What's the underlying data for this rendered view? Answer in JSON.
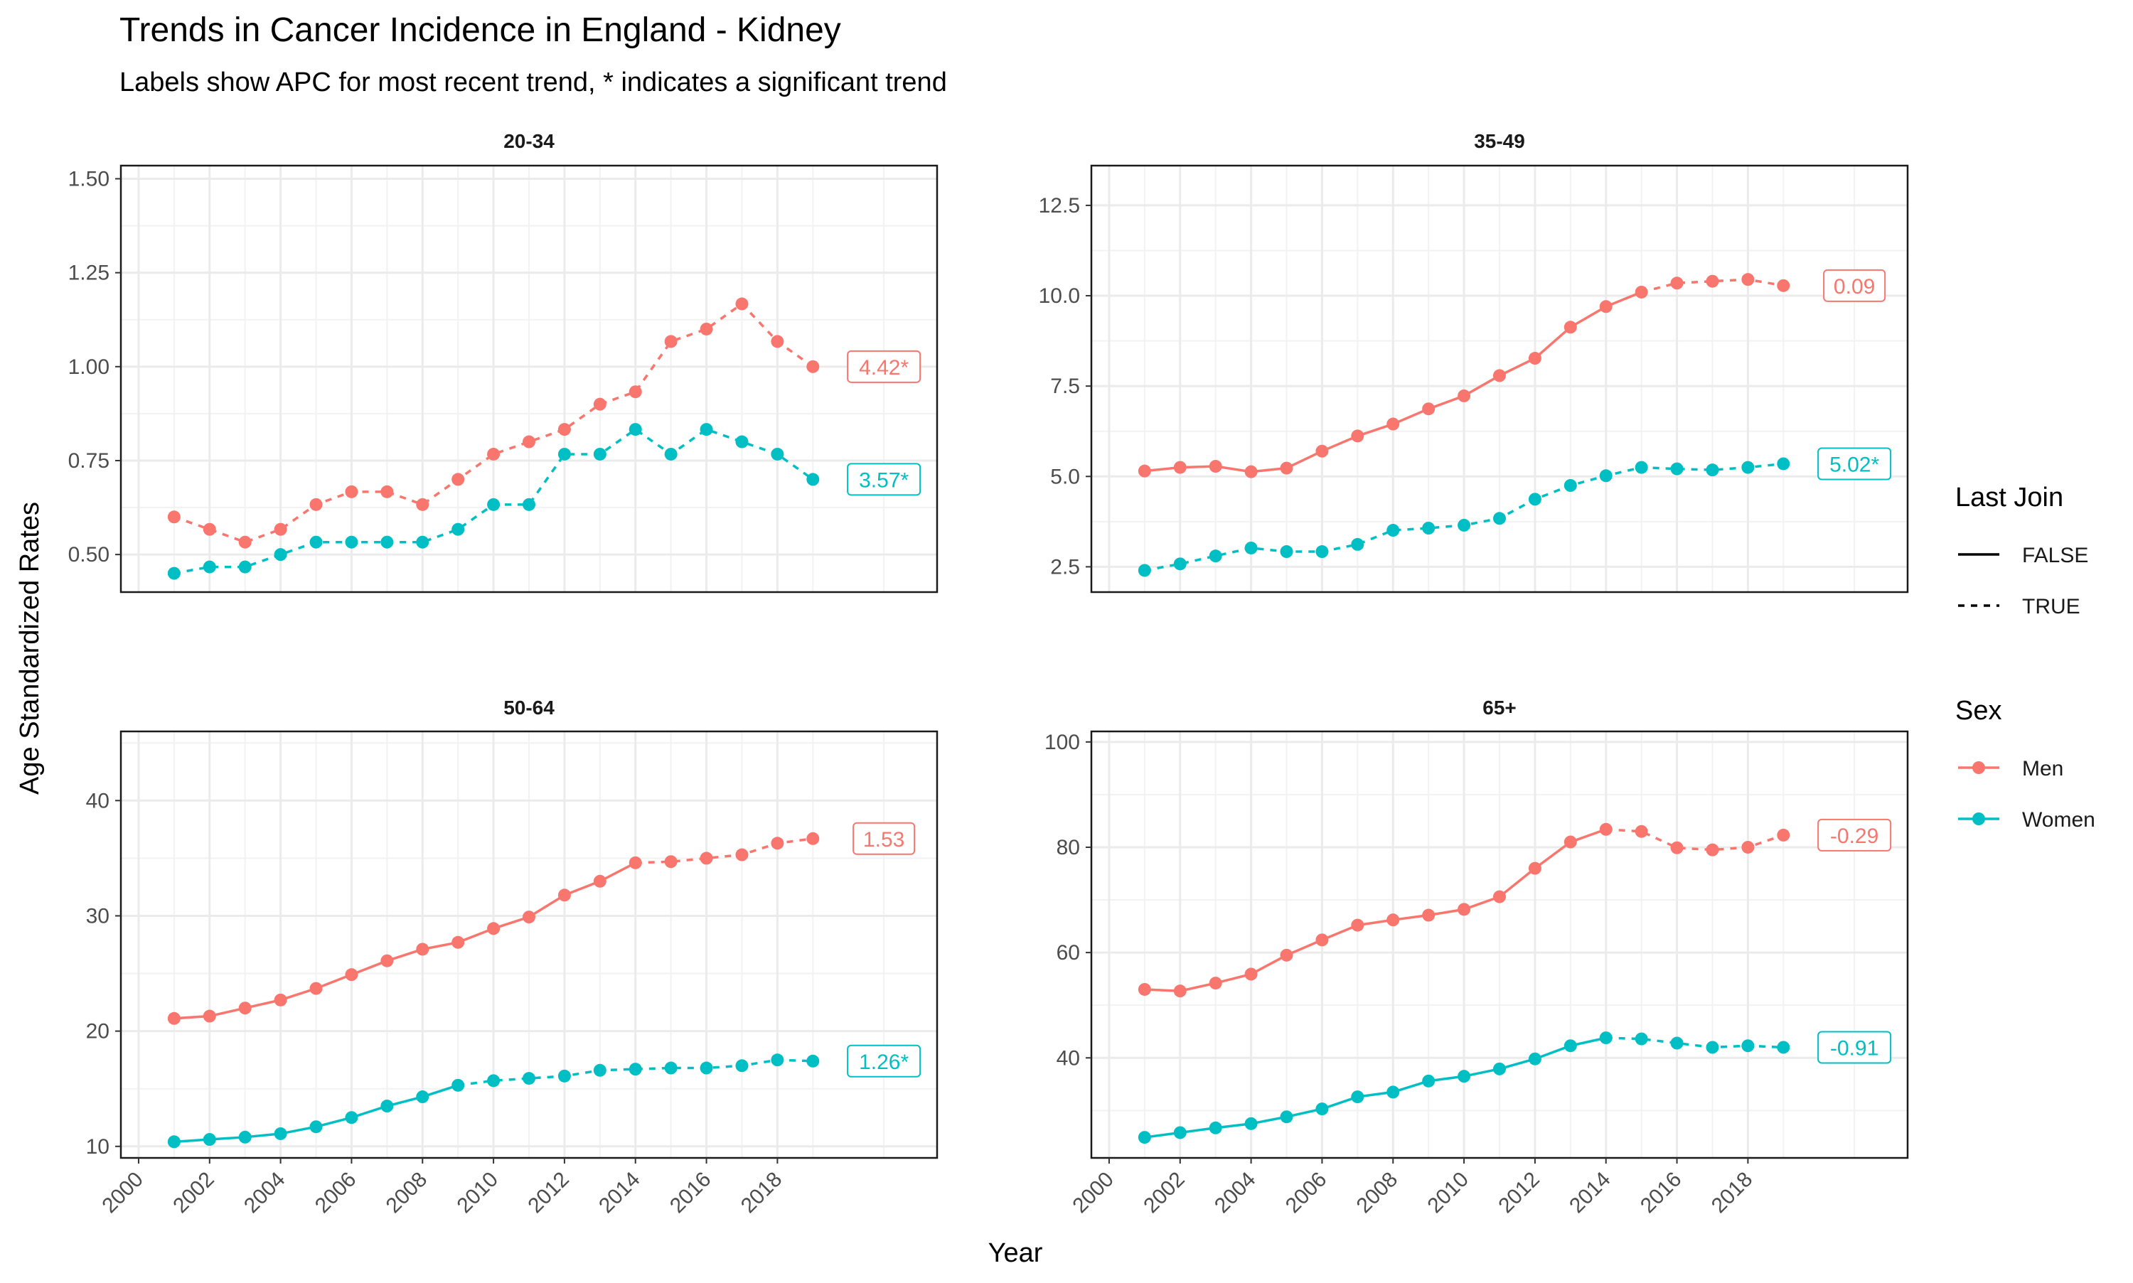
{
  "chart_data": {
    "type": "line",
    "title": "Trends in Cancer Incidence in England - Kidney",
    "subtitle": "Labels show APC for most recent trend, * indicates a significant trend",
    "xlabel": "Year",
    "ylabel": "Age Standardized Rates",
    "x_ticks": [
      "2000",
      "2002",
      "2004",
      "2006",
      "2008",
      "2010",
      "2012",
      "2014",
      "2016",
      "2018"
    ],
    "xlim": [
      1999.5,
      2022.5
    ],
    "grid": true,
    "colors": {
      "Men": "#F8766D",
      "Women": "#00BFC4"
    },
    "legends": [
      {
        "title": "Last Join",
        "entries": [
          {
            "label": "FALSE",
            "linetype": "solid"
          },
          {
            "label": "TRUE",
            "linetype": "dashed"
          }
        ]
      },
      {
        "title": "Sex",
        "entries": [
          {
            "label": "Men"
          },
          {
            "label": "Women"
          }
        ]
      }
    ],
    "panels": [
      {
        "label": "20-34",
        "ylim": [
          0.4,
          1.535
        ],
        "y_ticks": [
          "0.50",
          "0.75",
          "1.00",
          "1.25",
          "1.50"
        ],
        "y_tick_values": [
          0.5,
          0.75,
          1.0,
          1.25,
          1.5
        ],
        "series": [
          {
            "name": "Men",
            "last_join_start_year": 2001,
            "x": [
              2001,
              2002,
              2003,
              2004,
              2005,
              2006,
              2007,
              2008,
              2009,
              2010,
              2011,
              2012,
              2013,
              2014,
              2015,
              2016,
              2017,
              2018,
              2019
            ],
            "y": [
              0.6,
              0.567,
              0.533,
              0.567,
              0.633,
              0.667,
              0.667,
              0.633,
              0.7,
              0.767,
              0.8,
              0.833,
              0.9,
              0.933,
              1.067,
              1.1,
              1.167,
              1.067,
              1.0
            ],
            "apc_label": "4.42*"
          },
          {
            "name": "Women",
            "last_join_start_year": 2001,
            "x": [
              2001,
              2002,
              2003,
              2004,
              2005,
              2006,
              2007,
              2008,
              2009,
              2010,
              2011,
              2012,
              2013,
              2014,
              2015,
              2016,
              2017,
              2018,
              2019
            ],
            "y": [
              0.45,
              0.467,
              0.467,
              0.5,
              0.533,
              0.533,
              0.533,
              0.533,
              0.567,
              0.633,
              0.633,
              0.767,
              0.767,
              0.833,
              0.767,
              0.833,
              0.8,
              0.767,
              0.7
            ],
            "apc_label": "3.57*"
          }
        ]
      },
      {
        "label": "35-49",
        "ylim": [
          1.8,
          13.6
        ],
        "y_ticks": [
          "2.5",
          "5.0",
          "7.5",
          "10.0",
          "12.5"
        ],
        "y_tick_values": [
          2.5,
          5.0,
          7.5,
          10.0,
          12.5
        ],
        "series": [
          {
            "name": "Men",
            "last_join_start_year": 2015,
            "x": [
              2001,
              2002,
              2003,
              2004,
              2005,
              2006,
              2007,
              2008,
              2009,
              2010,
              2011,
              2012,
              2013,
              2014,
              2015,
              2016,
              2017,
              2018,
              2019
            ],
            "y": [
              5.15,
              5.25,
              5.28,
              5.13,
              5.23,
              5.7,
              6.12,
              6.45,
              6.87,
              7.23,
              7.79,
              8.27,
              9.13,
              9.7,
              10.1,
              10.35,
              10.4,
              10.45,
              10.28
            ],
            "apc_label": "0.09"
          },
          {
            "name": "Women",
            "last_join_start_year": 2001,
            "x": [
              2001,
              2002,
              2003,
              2004,
              2005,
              2006,
              2007,
              2008,
              2009,
              2010,
              2011,
              2012,
              2013,
              2014,
              2015,
              2016,
              2017,
              2018,
              2019
            ],
            "y": [
              2.4,
              2.58,
              2.8,
              3.02,
              2.92,
              2.92,
              3.12,
              3.51,
              3.57,
              3.65,
              3.84,
              4.37,
              4.75,
              5.02,
              5.25,
              5.21,
              5.18,
              5.25,
              5.35
            ],
            "apc_label": "5.02*"
          }
        ]
      },
      {
        "label": "50-64",
        "ylim": [
          9,
          46
        ],
        "y_ticks": [
          "10",
          "20",
          "30",
          "40"
        ],
        "y_tick_values": [
          10,
          20,
          30,
          40
        ],
        "series": [
          {
            "name": "Men",
            "last_join_start_year": 2014,
            "x": [
              2001,
              2002,
              2003,
              2004,
              2005,
              2006,
              2007,
              2008,
              2009,
              2010,
              2011,
              2012,
              2013,
              2014,
              2015,
              2016,
              2017,
              2018,
              2019
            ],
            "y": [
              21.1,
              21.3,
              22.0,
              22.7,
              23.7,
              24.9,
              26.1,
              27.1,
              27.7,
              28.9,
              29.9,
              31.8,
              33.0,
              34.6,
              34.7,
              35.0,
              35.3,
              36.3,
              36.7
            ],
            "apc_label": "1.53"
          },
          {
            "name": "Women",
            "last_join_start_year": 2009,
            "x": [
              2001,
              2002,
              2003,
              2004,
              2005,
              2006,
              2007,
              2008,
              2009,
              2010,
              2011,
              2012,
              2013,
              2014,
              2015,
              2016,
              2017,
              2018,
              2019
            ],
            "y": [
              10.4,
              10.6,
              10.8,
              11.1,
              11.7,
              12.5,
              13.5,
              14.3,
              15.3,
              15.7,
              15.9,
              16.1,
              16.6,
              16.7,
              16.8,
              16.8,
              17.0,
              17.5,
              17.4
            ],
            "apc_label": "1.26*"
          }
        ]
      },
      {
        "label": "65+",
        "ylim": [
          21,
          102
        ],
        "y_ticks": [
          "40",
          "60",
          "80",
          "100"
        ],
        "y_tick_values": [
          40,
          60,
          80,
          100
        ],
        "series": [
          {
            "name": "Men",
            "last_join_start_year": 2014,
            "x": [
              2001,
              2002,
              2003,
              2004,
              2005,
              2006,
              2007,
              2008,
              2009,
              2010,
              2011,
              2012,
              2013,
              2014,
              2015,
              2016,
              2017,
              2018,
              2019
            ],
            "y": [
              53.0,
              52.7,
              54.2,
              55.9,
              59.5,
              62.4,
              65.2,
              66.2,
              67.1,
              68.2,
              70.6,
              76.0,
              81.0,
              83.4,
              83.0,
              79.9,
              79.5,
              80.0,
              82.3
            ],
            "apc_label": "-0.29"
          },
          {
            "name": "Women",
            "last_join_start_year": 2014,
            "x": [
              2001,
              2002,
              2003,
              2004,
              2005,
              2006,
              2007,
              2008,
              2009,
              2010,
              2011,
              2012,
              2013,
              2014,
              2015,
              2016,
              2017,
              2018,
              2019
            ],
            "y": [
              24.9,
              25.8,
              26.7,
              27.5,
              28.8,
              30.3,
              32.6,
              33.5,
              35.6,
              36.5,
              37.9,
              39.8,
              42.3,
              43.8,
              43.6,
              42.8,
              42.0,
              42.3,
              42.0
            ],
            "apc_label": "-0.91"
          }
        ]
      }
    ]
  }
}
